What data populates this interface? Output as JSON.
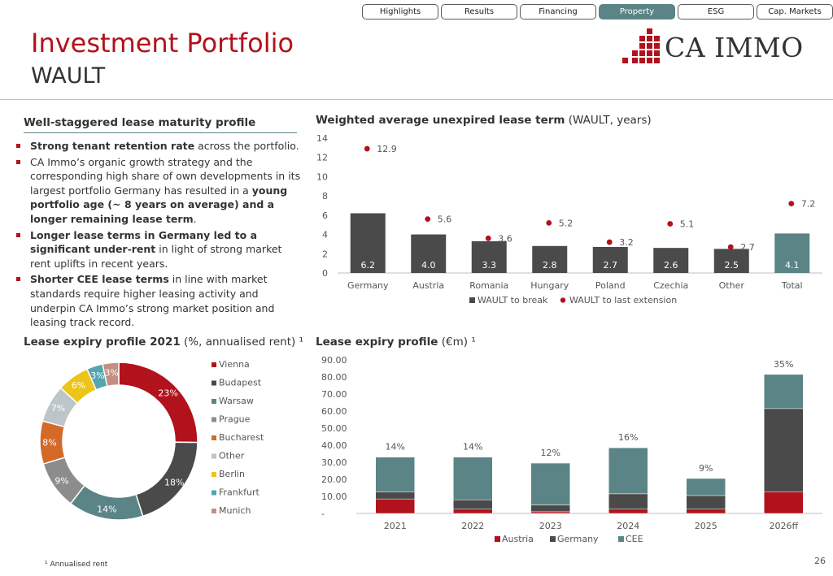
{
  "nav": {
    "tabs": [
      {
        "label": "Highlights",
        "active": false
      },
      {
        "label": "Results",
        "active": false
      },
      {
        "label": "Financing",
        "active": false
      },
      {
        "label": "Property",
        "active": true
      },
      {
        "label": "ESG",
        "active": false
      },
      {
        "label": "Cap. Markets",
        "active": false
      }
    ]
  },
  "header": {
    "title": "Investment Portfolio",
    "subtitle": "WAULT",
    "logo_text": "CA IMMO",
    "logo_icon": "ca-immo-block-logo"
  },
  "colors": {
    "brand_red": "#b1121c",
    "dark_gray": "#4a4a4a",
    "teal": "#5b8486"
  },
  "left_section": {
    "title": "Well-staggered lease maturity profile",
    "bullets": [
      [
        {
          "b": true,
          "t": "Strong tenant retention rate"
        },
        {
          "b": false,
          "t": " across the portfolio."
        }
      ],
      [
        {
          "b": false,
          "t": "CA Immo’s organic growth strategy and the corresponding high share of own developments in its largest portfolio Germany has resulted in a "
        },
        {
          "b": true,
          "t": "young portfolio age (~ 8 years on average) and a longer remaining lease term"
        },
        {
          "b": false,
          "t": "."
        }
      ],
      [
        {
          "b": true,
          "t": "Longer lease terms in Germany led to a significant under-rent"
        },
        {
          "b": false,
          "t": " in light of strong market rent uplifts in recent years."
        }
      ],
      [
        {
          "b": true,
          "t": "Shorter CEE lease terms"
        },
        {
          "b": false,
          "t": " in line with market standards require higher leasing activity and underpin CA Immo’s strong market position and leasing track record."
        }
      ]
    ]
  },
  "footnote": "¹ Annualised rent",
  "page_number": "26",
  "chart_data": [
    {
      "id": "wault",
      "type": "bar",
      "title_bold": "Weighted average unexpired lease term",
      "title_rest": " (WAULT, years)",
      "categories": [
        "Germany",
        "Austria",
        "Romania",
        "Hungary",
        "Poland",
        "Czechia",
        "Other",
        "Total"
      ],
      "ylim": [
        0,
        14
      ],
      "yticks": [
        0,
        2,
        4,
        6,
        8,
        10,
        12,
        14
      ],
      "grid": false,
      "series": [
        {
          "name": "WAULT to break",
          "kind": "bar",
          "values": [
            6.2,
            4.0,
            3.3,
            2.8,
            2.7,
            2.6,
            2.5,
            4.1
          ],
          "labels": [
            "6.2",
            "4.0",
            "3.3",
            "2.8",
            "2.7",
            "2.6",
            "2.5",
            "4.1"
          ],
          "colors": [
            "#4a4a4a",
            "#4a4a4a",
            "#4a4a4a",
            "#4a4a4a",
            "#4a4a4a",
            "#4a4a4a",
            "#4a4a4a",
            "#5b8486"
          ]
        },
        {
          "name": "WAULT to last extension",
          "kind": "dot",
          "values": [
            12.9,
            5.6,
            3.6,
            5.2,
            3.2,
            5.1,
            2.7,
            7.2
          ],
          "labels": [
            "12.9",
            "5.6",
            "3.6",
            "5.2",
            "3.2",
            "5.1",
            "2.7",
            "7.2"
          ],
          "color": "#b1121c"
        }
      ],
      "legend": [
        "WAULT to break",
        "WAULT to last extension"
      ]
    },
    {
      "id": "lease-expiry-2021",
      "type": "pie",
      "donut": true,
      "title_bold": "Lease expiry profile 2021",
      "title_rest": " (%, annualised rent) ¹",
      "slices": [
        {
          "name": "Vienna",
          "value": 23,
          "label": "23%",
          "color": "#b1121c"
        },
        {
          "name": "Budapest",
          "value": 18,
          "label": "18%",
          "color": "#4a4a4a"
        },
        {
          "name": "Warsaw",
          "value": 14,
          "label": "14%",
          "color": "#5b8486"
        },
        {
          "name": "Prague",
          "value": 9,
          "label": "9%",
          "color": "#8c8c8c"
        },
        {
          "name": "Bucharest",
          "value": 8,
          "label": "8%",
          "color": "#d46a27"
        },
        {
          "name": "Other",
          "value": 7,
          "label": "7%",
          "color": "#bcc5c9"
        },
        {
          "name": "Berlin",
          "value": 6,
          "label": "6%",
          "color": "#ecc516"
        },
        {
          "name": "Frankfurt",
          "value": 3,
          "label": "3%",
          "color": "#54a4b2"
        },
        {
          "name": "Munich",
          "value": 3,
          "label": "3%",
          "color": "#c48e82"
        }
      ],
      "legend_position": "right"
    },
    {
      "id": "lease-expiry-eur",
      "type": "bar",
      "stacked": true,
      "title_bold": "Lease expiry profile",
      "title_rest": " (€m) ¹",
      "categories": [
        "2021",
        "2022",
        "2023",
        "2024",
        "2025",
        "2026ff"
      ],
      "ylim": [
        0,
        90
      ],
      "yticks": [
        "-",
        "10.00",
        "20.00",
        "30.00",
        "40.00",
        "50.00",
        "60.00",
        "70.00",
        "80.00",
        "90.00"
      ],
      "series": [
        {
          "name": "Austria",
          "values": [
            8.5,
            2.5,
            1.0,
            2.5,
            2.5,
            12.5
          ],
          "color": "#b1121c"
        },
        {
          "name": "Germany",
          "values": [
            4.0,
            5.5,
            4.0,
            9.0,
            8.0,
            49.0
          ],
          "color": "#4a4a4a"
        },
        {
          "name": "CEE",
          "values": [
            20.5,
            25.0,
            24.5,
            27.0,
            10.0,
            20.0
          ],
          "color": "#5b8486"
        }
      ],
      "top_labels": [
        "14%",
        "14%",
        "12%",
        "16%",
        "9%",
        "35%"
      ],
      "legend": [
        "Austria",
        "Germany",
        "CEE"
      ]
    }
  ]
}
